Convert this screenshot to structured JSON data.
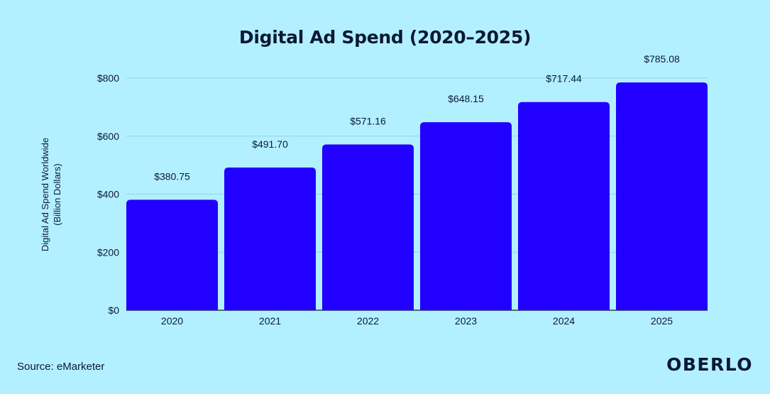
{
  "page": {
    "source": "Source: eMarketer",
    "brand": "OBERLO"
  },
  "colors": {
    "background": "#b3f0ff",
    "bar": "#2200ff",
    "text": "#0c1836",
    "grid": "#8fd3e6"
  },
  "chart_data": {
    "type": "bar",
    "title": "Digital Ad Spend (2020–2025)",
    "xlabel": "",
    "ylabel": "Digital Ad Spend Worldwide",
    "ylabel_line2": "(Billion Dollars)",
    "categories": [
      "2020",
      "2021",
      "2022",
      "2023",
      "2024",
      "2025"
    ],
    "values": [
      380.75,
      491.7,
      571.16,
      648.15,
      717.44,
      785.08
    ],
    "data_labels": [
      "$380.75",
      "$491.70",
      "$571.16",
      "$648.15",
      "$717.44",
      "$785.08"
    ],
    "ylim": [
      0,
      800
    ],
    "yticks": [
      0,
      200,
      400,
      600,
      800
    ],
    "ytick_labels": [
      "$0",
      "$200",
      "$400",
      "$600",
      "$800"
    ],
    "grid": true,
    "legend": "none"
  }
}
